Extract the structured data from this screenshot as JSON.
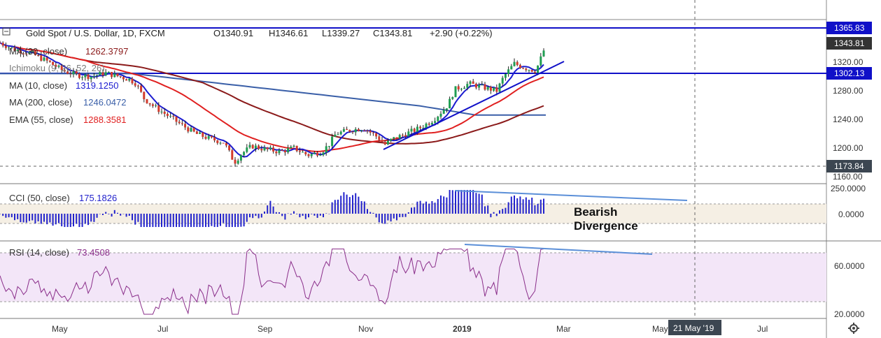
{
  "header": {
    "symbol": "Gold Spot / U.S. Dollar, 1D, FXCM",
    "open": "O1340.91",
    "high": "H1346.61",
    "low": "L1339.27",
    "close": "C1343.81",
    "change": "+2.90 (+0.22%)"
  },
  "legends": {
    "ma30": {
      "label": "MA (30, close)",
      "value": "1262.3797",
      "color": "#8b1a1a"
    },
    "ichimoku": {
      "label": "Ichimoku (9, 26, 52, 26)",
      "value": "",
      "color": "#2a2af0"
    },
    "ma10": {
      "label": "MA (10, close)",
      "value": "1319.1250",
      "color": "#1c1cd0"
    },
    "ma200": {
      "label": "MA (200, close)",
      "value": "1246.0472",
      "color": "#3a5fa8"
    },
    "ema55": {
      "label": "EMA (55, close)",
      "value": "1288.3581",
      "color": "#e02020"
    },
    "cci": {
      "label": "CCI (50, close)",
      "value": "175.1826",
      "color": "#2222cc"
    },
    "rsi": {
      "label": "RSI (14, close)",
      "value": "73.4508",
      "color": "#8a2e8a"
    }
  },
  "price_scale": {
    "ticks": [
      "1320.00",
      "1280.00",
      "1240.00",
      "1200.00",
      "1160.00"
    ],
    "badges": [
      {
        "text": "1365.83",
        "kind": "line"
      },
      {
        "text": "1343.81",
        "kind": "last"
      },
      {
        "text": "1302.13",
        "kind": "line"
      },
      {
        "text": "1173.84",
        "kind": "crosshair"
      }
    ]
  },
  "cci_scale": {
    "ticks": [
      "250.0000",
      "0.0000"
    ]
  },
  "rsi_scale": {
    "ticks": [
      "60.0000",
      "20.0000"
    ]
  },
  "time_axis": {
    "labels": [
      "May",
      "Jul",
      "Sep",
      "Nov",
      "2019",
      "Mar",
      "May",
      "Jul"
    ],
    "crosshair_label": "21 May '19"
  },
  "annotation": {
    "line1": "Bearish",
    "line2": "Divergence"
  },
  "chart_data": {
    "type": "line",
    "title": "Gold Spot / U.S. Dollar, 1D, FXCM",
    "x_axis_labels": [
      "May",
      "Jul",
      "Sep",
      "Nov",
      "2019",
      "Mar",
      "May",
      "Jul"
    ],
    "ylim": [
      1150,
      1375
    ],
    "horizontal_levels": [
      1365.83,
      1302.13
    ],
    "last_price": 1343.81,
    "price_close_approx": {
      "points": [
        [
          0,
          1347
        ],
        [
          20,
          1338
        ],
        [
          45,
          1332
        ],
        [
          70,
          1320
        ],
        [
          90,
          1308
        ],
        [
          110,
          1302
        ],
        [
          130,
          1300
        ],
        [
          150,
          1305
        ],
        [
          170,
          1300
        ],
        [
          185,
          1296
        ],
        [
          195,
          1290
        ],
        [
          205,
          1270
        ],
        [
          220,
          1258
        ],
        [
          240,
          1245
        ],
        [
          260,
          1232
        ],
        [
          280,
          1220
        ],
        [
          300,
          1213
        ],
        [
          320,
          1208
        ],
        [
          335,
          1180
        ],
        [
          345,
          1192
        ],
        [
          360,
          1203
        ],
        [
          380,
          1198
        ],
        [
          400,
          1195
        ],
        [
          420,
          1200
        ],
        [
          440,
          1190
        ],
        [
          460,
          1195
        ],
        [
          470,
          1205
        ],
        [
          480,
          1220
        ],
        [
          500,
          1225
        ],
        [
          520,
          1228
        ],
        [
          540,
          1215
        ],
        [
          550,
          1205
        ],
        [
          560,
          1212
        ],
        [
          580,
          1220
        ],
        [
          600,
          1228
        ],
        [
          620,
          1240
        ],
        [
          640,
          1260
        ],
        [
          650,
          1282
        ],
        [
          670,
          1290
        ],
        [
          690,
          1285
        ],
        [
          710,
          1280
        ],
        [
          720,
          1300
        ],
        [
          735,
          1318
        ],
        [
          750,
          1312
        ],
        [
          765,
          1308
        ],
        [
          770,
          1318
        ],
        [
          780,
          1344
        ]
      ]
    },
    "series": [
      {
        "name": "MA (10, close)",
        "value": 1319.125
      },
      {
        "name": "MA (200, close)",
        "value": 1246.0472
      },
      {
        "name": "EMA (55, close)",
        "value": 1288.3581
      },
      {
        "name": "MA (30, close)",
        "value": 1262.3797
      }
    ],
    "cci": {
      "ylim": [
        -150,
        270
      ],
      "last": 175.1826,
      "overbought": 100,
      "oversold": -100
    },
    "rsi": {
      "ylim": [
        15,
        80
      ],
      "last": 73.4508,
      "upper": 70,
      "lower": 30
    }
  }
}
